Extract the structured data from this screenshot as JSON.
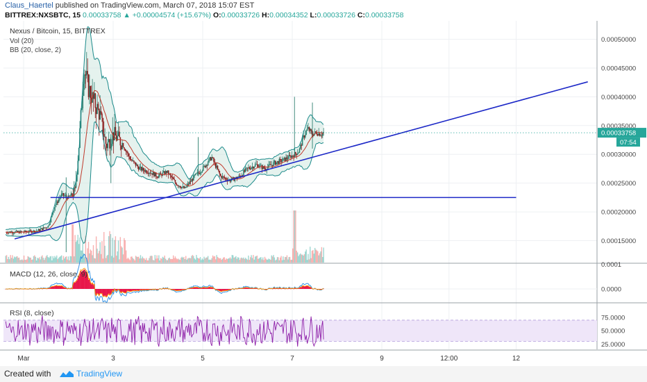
{
  "header": {
    "author": "Claus_Haertel",
    "published": "published on TradingView.com, March 07, 2018 15:07 EST",
    "symbol": "BITTREX:NXSBTC, 15",
    "last": "0.00033758",
    "change": "+0.00004574 (+15.67%)",
    "o_label": "O:",
    "o": "0.00033726",
    "h_label": "H:",
    "h": "0.00034352",
    "l_label": "L:",
    "l": "0.00033726",
    "c_label": "C:",
    "c": "0.00033758"
  },
  "footer": {
    "created": "Created with",
    "brand": "TradingView"
  },
  "colors": {
    "up": "#26a69a",
    "down": "#ef5350",
    "bb": "#1b8a8a",
    "bb_fill": "#cfe8e0",
    "trend": "#1c28c7",
    "rsi": "#8e1fa8",
    "rsi_band": "#efe6f9",
    "macd_hist": "#e8174a"
  },
  "chart_data": [
    {
      "type": "line",
      "title": "Nexus / Bitcoin, 15, BITTREX",
      "indicators": [
        "Vol (20)",
        "BB (20, close, 2)"
      ],
      "x_ticks": [
        "Mar",
        "3",
        "5",
        "7",
        "9",
        "12:00",
        "12"
      ],
      "y_ticks": [
        "0.00015000",
        "0.00020000",
        "0.00025000",
        "0.00030000",
        "0.00035000",
        "0.00040000",
        "0.00045000",
        "0.00050000"
      ],
      "ylim": [
        0.000112,
        0.000532
      ],
      "last_price_label": "0.00033758",
      "countdown_label": "07:54",
      "price_path": [
        [
          0,
          0.000165
        ],
        [
          0.3,
          0.000167
        ],
        [
          0.55,
          0.000175
        ],
        [
          0.7,
          0.00021
        ],
        [
          0.85,
          0.00023
        ],
        [
          1.0,
          0.000225
        ],
        [
          1.15,
          0.000235
        ],
        [
          1.25,
          0.00033
        ],
        [
          1.35,
          0.00045
        ],
        [
          1.45,
          0.000415
        ],
        [
          1.55,
          0.000395
        ],
        [
          1.7,
          0.00037
        ],
        [
          1.85,
          0.000315
        ],
        [
          2.0,
          0.000335
        ],
        [
          2.2,
          0.00032
        ],
        [
          2.4,
          0.00029
        ],
        [
          2.6,
          0.000275
        ],
        [
          2.8,
          0.00027
        ],
        [
          3.0,
          0.000262
        ],
        [
          3.2,
          0.00027
        ],
        [
          3.4,
          0.00025
        ],
        [
          3.6,
          0.00024
        ],
        [
          3.8,
          0.00026
        ],
        [
          4.0,
          0.000275
        ],
        [
          4.2,
          0.000295
        ],
        [
          4.4,
          0.000262
        ],
        [
          4.6,
          0.000255
        ],
        [
          4.8,
          0.00026
        ],
        [
          5.0,
          0.000275
        ],
        [
          5.2,
          0.000282
        ],
        [
          5.4,
          0.000275
        ],
        [
          5.6,
          0.000285
        ],
        [
          5.8,
          0.00029
        ],
        [
          6.0,
          0.000298
        ],
        [
          6.15,
          0.000305
        ],
        [
          6.25,
          0.00033
        ],
        [
          6.35,
          0.000345
        ],
        [
          6.45,
          0.000335
        ],
        [
          6.55,
          0.000338
        ],
        [
          6.65,
          0.000335
        ],
        [
          6.7,
          0.000338
        ]
      ],
      "trendlines": [
        {
          "from": [
            -0.2,
            0.000153
          ],
          "to": [
            12.6,
            0.000426
          ]
        },
        {
          "from": [
            0.6,
            0.000225
          ],
          "to": [
            11.0,
            0.000225
          ]
        }
      ]
    },
    {
      "type": "line",
      "title": "MACD (12, 26, close, 9)",
      "y_ticks": [
        "0.0001",
        "0.0000"
      ],
      "ylim": [
        -4e-05,
        0.0001
      ]
    },
    {
      "type": "line",
      "title": "RSI (8, close)",
      "y_ticks": [
        "75.0000",
        "50.0000",
        "25.0000"
      ],
      "ylim": [
        15,
        100
      ],
      "bands": [
        30,
        70
      ]
    }
  ]
}
